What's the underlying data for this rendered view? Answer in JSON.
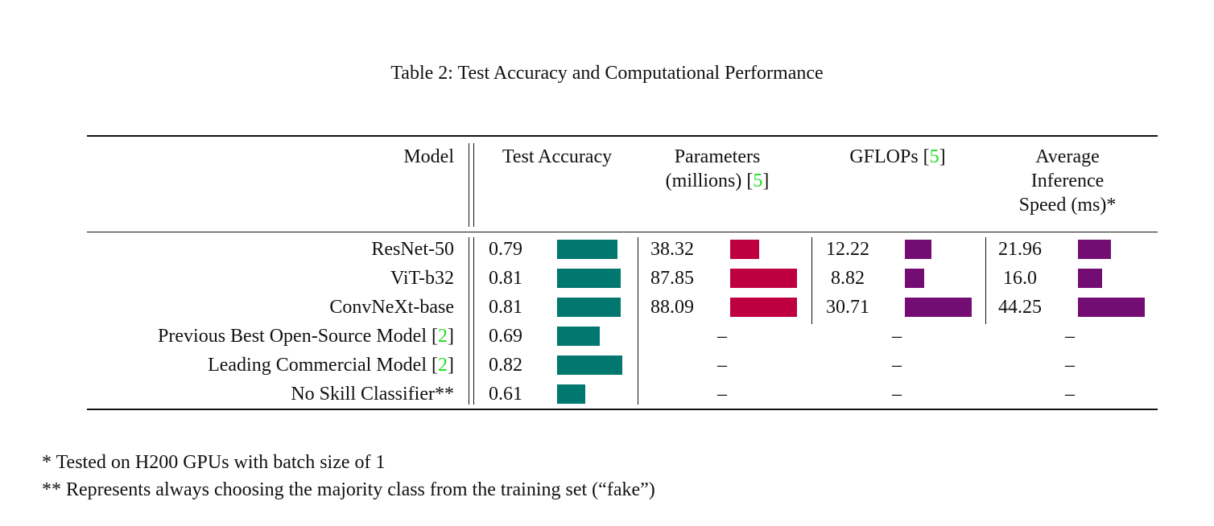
{
  "caption": "Table 2: Test Accuracy and Computational Performance",
  "headers": {
    "model": "Model",
    "accuracy": "Test Accuracy",
    "params_l1": "Parameters",
    "params_l2": "(millions) [",
    "params_cite": "5",
    "params_end": "]",
    "gflops": "GFLOPs [",
    "gflops_cite": "5",
    "gflops_end": "]",
    "speed_l1": "Average",
    "speed_l2": "Inference",
    "speed_l3": "Speed (ms)*"
  },
  "colors": {
    "accuracy_bar": "#00776f",
    "params_bar": "#bf0040",
    "gflops_bar": "#730d73",
    "speed_bar": "#730d73",
    "citation": "#22dd22"
  },
  "rows": [
    {
      "model": "ResNet-50",
      "cite": "",
      "accuracy": "0.79",
      "params": "38.32",
      "gflops": "12.22",
      "speed": "21.96"
    },
    {
      "model": "ViT-b32",
      "cite": "",
      "accuracy": "0.81",
      "params": "87.85",
      "gflops": "8.82",
      "speed": "16.0"
    },
    {
      "model": "ConvNeXt-base",
      "cite": "",
      "accuracy": "0.81",
      "params": "88.09",
      "gflops": "30.71",
      "speed": "44.25"
    },
    {
      "model": "Previous Best Open-Source Model [",
      "cite": "2",
      "cite_end": "]",
      "accuracy": "0.69",
      "params": "–",
      "gflops": "–",
      "speed": "–"
    },
    {
      "model": "Leading Commercial Model [",
      "cite": "2",
      "cite_end": "]",
      "accuracy": "0.82",
      "params": "–",
      "gflops": "–",
      "speed": "–"
    },
    {
      "model": "No Skill Classifier**",
      "cite": "",
      "accuracy": "0.61",
      "params": "–",
      "gflops": "–",
      "speed": "–"
    }
  ],
  "footnotes": [
    "* Tested on H200 GPUs with batch size of 1",
    "** Represents always choosing the majority class from the training set (“fake”)"
  ]
}
